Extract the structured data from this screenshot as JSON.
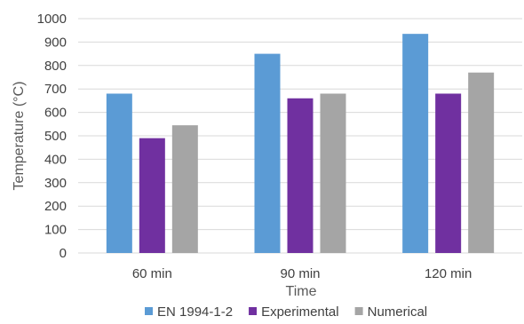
{
  "chart_data": {
    "type": "bar",
    "title": "",
    "xlabel": "Time",
    "ylabel": "Temperature (°C)",
    "categories": [
      "60 min",
      "90 min",
      "120 min"
    ],
    "series": [
      {
        "name": "EN 1994-1-2",
        "color": "#5b9bd5",
        "values": [
          680,
          850,
          935
        ]
      },
      {
        "name": "Experimental",
        "color": "#7030a0",
        "values": [
          490,
          660,
          680
        ]
      },
      {
        "name": "Numerical",
        "color": "#a5a5a5",
        "values": [
          545,
          680,
          770
        ]
      }
    ],
    "ylim": [
      0,
      1000
    ],
    "yticks": [
      0,
      100,
      200,
      300,
      400,
      500,
      600,
      700,
      800,
      900,
      1000
    ],
    "grid": true,
    "legend_position": "bottom"
  }
}
